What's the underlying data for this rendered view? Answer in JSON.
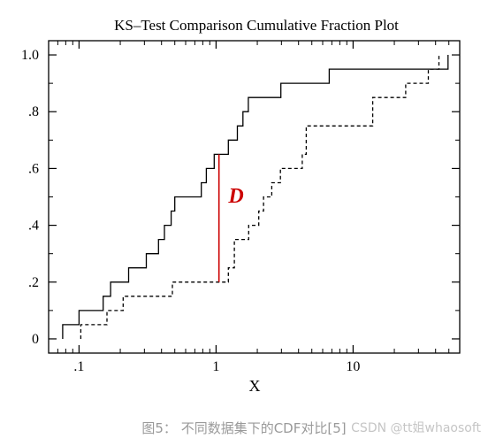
{
  "chart_data": {
    "type": "line",
    "title": "KS–Test Comparison Cumulative Fraction Plot",
    "xlabel": "X",
    "ylabel": "",
    "x_scale": "log",
    "xlim": [
      0.06,
      60
    ],
    "ylim": [
      -0.05,
      1.05
    ],
    "x_ticks": [
      {
        "value": 0.1,
        "label": ".1"
      },
      {
        "value": 1,
        "label": "1"
      },
      {
        "value": 10,
        "label": "10"
      }
    ],
    "y_ticks": [
      {
        "value": 0,
        "label": "0"
      },
      {
        "value": 0.2,
        "label": ".2"
      },
      {
        "value": 0.4,
        "label": ".4"
      },
      {
        "value": 0.6,
        "label": ".6"
      },
      {
        "value": 0.8,
        "label": ".8"
      },
      {
        "value": 1.0,
        "label": "1.0"
      }
    ],
    "grid": false,
    "series": [
      {
        "style": "solid",
        "color": "#000000",
        "points": [
          [
            0.076,
            0.0
          ],
          [
            0.076,
            0.05
          ],
          [
            0.1,
            0.05
          ],
          [
            0.1,
            0.1
          ],
          [
            0.15,
            0.1
          ],
          [
            0.15,
            0.15
          ],
          [
            0.17,
            0.15
          ],
          [
            0.17,
            0.2
          ],
          [
            0.23,
            0.2
          ],
          [
            0.23,
            0.25
          ],
          [
            0.31,
            0.25
          ],
          [
            0.31,
            0.3
          ],
          [
            0.38,
            0.3
          ],
          [
            0.38,
            0.35
          ],
          [
            0.42,
            0.35
          ],
          [
            0.42,
            0.4
          ],
          [
            0.47,
            0.4
          ],
          [
            0.47,
            0.45
          ],
          [
            0.5,
            0.45
          ],
          [
            0.5,
            0.5
          ],
          [
            0.78,
            0.5
          ],
          [
            0.78,
            0.55
          ],
          [
            0.85,
            0.55
          ],
          [
            0.85,
            0.6
          ],
          [
            0.97,
            0.6
          ],
          [
            0.97,
            0.65
          ],
          [
            1.23,
            0.65
          ],
          [
            1.23,
            0.7
          ],
          [
            1.43,
            0.7
          ],
          [
            1.43,
            0.75
          ],
          [
            1.57,
            0.75
          ],
          [
            1.57,
            0.8
          ],
          [
            1.72,
            0.8
          ],
          [
            1.72,
            0.85
          ],
          [
            2.97,
            0.85
          ],
          [
            2.97,
            0.9
          ],
          [
            6.7,
            0.9
          ],
          [
            6.7,
            0.95
          ],
          [
            49.3,
            0.95
          ],
          [
            49.3,
            1.0
          ]
        ]
      },
      {
        "style": "dashed",
        "color": "#000000",
        "points": [
          [
            0.103,
            0.0
          ],
          [
            0.103,
            0.05
          ],
          [
            0.16,
            0.05
          ],
          [
            0.16,
            0.1
          ],
          [
            0.21,
            0.1
          ],
          [
            0.21,
            0.15
          ],
          [
            0.48,
            0.15
          ],
          [
            0.48,
            0.2
          ],
          [
            1.23,
            0.2
          ],
          [
            1.23,
            0.25
          ],
          [
            1.36,
            0.25
          ],
          [
            1.36,
            0.35
          ],
          [
            1.73,
            0.35
          ],
          [
            1.73,
            0.4
          ],
          [
            2.05,
            0.4
          ],
          [
            2.05,
            0.45
          ],
          [
            2.22,
            0.45
          ],
          [
            2.22,
            0.5
          ],
          [
            2.55,
            0.5
          ],
          [
            2.55,
            0.55
          ],
          [
            2.95,
            0.55
          ],
          [
            2.95,
            0.6
          ],
          [
            4.26,
            0.6
          ],
          [
            4.26,
            0.65
          ],
          [
            4.55,
            0.65
          ],
          [
            4.55,
            0.75
          ],
          [
            13.9,
            0.75
          ],
          [
            13.9,
            0.85
          ],
          [
            24.2,
            0.85
          ],
          [
            24.2,
            0.9
          ],
          [
            35.4,
            0.9
          ],
          [
            35.4,
            0.95
          ],
          [
            42.3,
            0.95
          ],
          [
            42.3,
            1.0
          ]
        ]
      }
    ],
    "annotations": [
      {
        "type": "vline",
        "x": 1.05,
        "y0": 0.2,
        "y1": 0.65,
        "color": "#cc0000"
      },
      {
        "type": "text",
        "text": "D",
        "x": 1.4,
        "y": 0.48,
        "color": "#cc0000"
      }
    ]
  },
  "caption": "图5： 不同数据集下的CDF对比[5]",
  "watermark": "CSDN @tt姐whaosoft"
}
